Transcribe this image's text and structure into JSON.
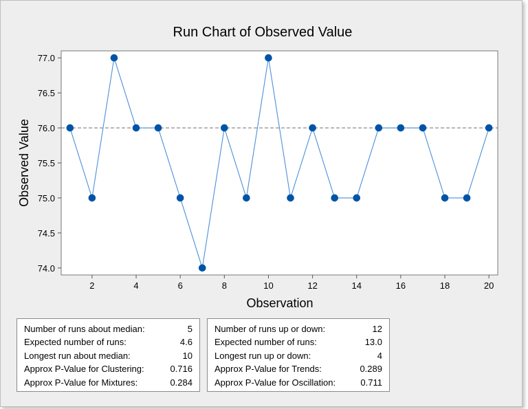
{
  "chart_data": {
    "type": "line",
    "title": "Run Chart of Observed Value",
    "xlabel": "Observation",
    "ylabel": "Observed Value",
    "x": [
      1,
      2,
      3,
      4,
      5,
      6,
      7,
      8,
      9,
      10,
      11,
      12,
      13,
      14,
      15,
      16,
      17,
      18,
      19,
      20
    ],
    "series": [
      {
        "values": [
          76,
          75,
          77,
          76,
          76,
          75,
          74,
          76,
          75,
          77,
          75,
          76,
          75,
          75,
          76,
          76,
          76,
          75,
          75,
          76
        ]
      }
    ],
    "median": 76.0,
    "xticks": [
      "2",
      "4",
      "6",
      "8",
      "10",
      "12",
      "14",
      "16",
      "18",
      "20"
    ],
    "yticks": [
      "74.0",
      "74.5",
      "75.0",
      "75.5",
      "76.0",
      "76.5",
      "77.0"
    ],
    "xlim": [
      0.6,
      20.4
    ],
    "ylim": [
      73.9,
      77.1
    ],
    "grid": false,
    "colors": {
      "series": "#0054a6",
      "line": "#4a90d9",
      "median": "#808080"
    }
  },
  "stats_left": [
    {
      "label": "Number of runs about median:",
      "value": "5"
    },
    {
      "label": "Expected number of runs:",
      "value": "4.6"
    },
    {
      "label": "Longest run about median:",
      "value": "10"
    },
    {
      "label": "Approx P-Value for Clustering:",
      "value": "0.716"
    },
    {
      "label": "Approx P-Value for Mixtures:",
      "value": "0.284"
    }
  ],
  "stats_right": [
    {
      "label": "Number of runs up or down:",
      "value": "12"
    },
    {
      "label": "Expected number of runs:",
      "value": "13.0"
    },
    {
      "label": "Longest run up or down:",
      "value": "4"
    },
    {
      "label": "Approx P-Value for Trends:",
      "value": "0.289"
    },
    {
      "label": "Approx P-Value for Oscillation:",
      "value": "0.711"
    }
  ]
}
